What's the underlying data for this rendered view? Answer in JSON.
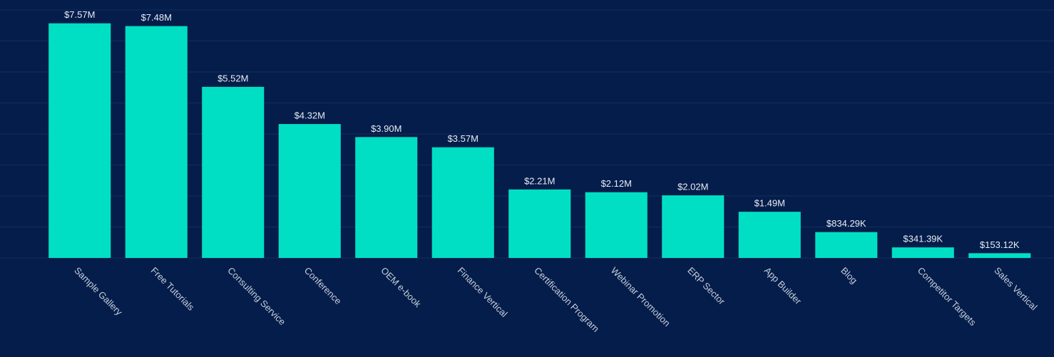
{
  "chart_data": {
    "type": "bar",
    "categories": [
      "Sample Gallery",
      "Free Tutorials",
      "Consulting Service",
      "Conference",
      "OEM e-book",
      "Finance Vertical",
      "Certification Program",
      "Webinar Promotion",
      "ERP Sector",
      "App Builder",
      "Blog",
      "Competitor Targets",
      "Sales Vertical"
    ],
    "values": [
      7570000,
      7480000,
      5520000,
      4320000,
      3900000,
      3570000,
      2210000,
      2120000,
      2020000,
      1490000,
      834290,
      341390,
      153120
    ],
    "value_labels": [
      "$7.57M",
      "$7.48M",
      "$5.52M",
      "$4.32M",
      "$3.90M",
      "$3.57M",
      "$2.21M",
      "$2.12M",
      "$2.02M",
      "$1.49M",
      "$834.29K",
      "$341.39K",
      "$153.12K"
    ],
    "color": "#00dfc4",
    "ylim": [
      0,
      8000000
    ],
    "yticks": [
      0,
      1000000,
      2000000,
      3000000,
      4000000,
      5000000,
      6000000,
      7000000,
      8000000
    ],
    "grid": true
  }
}
